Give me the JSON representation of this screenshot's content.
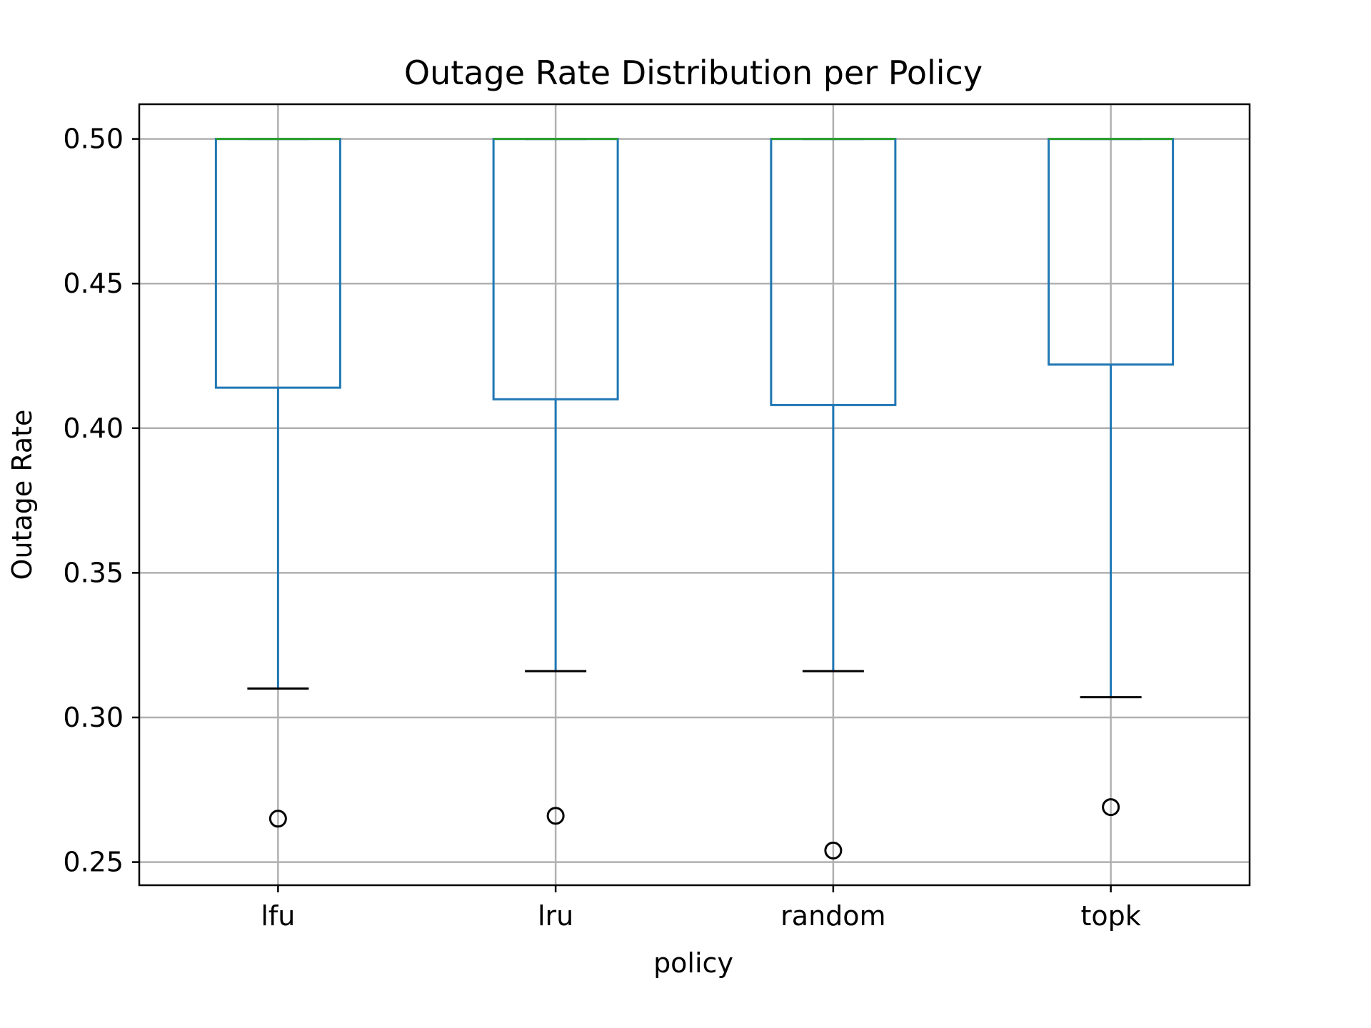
{
  "chart_data": {
    "type": "box",
    "title": "Outage Rate Distribution per Policy",
    "xlabel": "policy",
    "ylabel": "Outage Rate",
    "ylim": [
      0.242,
      0.512
    ],
    "yticks": [
      0.25,
      0.3,
      0.35,
      0.4,
      0.45,
      0.5
    ],
    "ytick_labels": [
      "0.25",
      "0.30",
      "0.35",
      "0.40",
      "0.45",
      "0.50"
    ],
    "grid": true,
    "categories": [
      "lfu",
      "lru",
      "random",
      "topk"
    ],
    "boxes": [
      {
        "name": "lfu",
        "whisker_low": 0.31,
        "q1": 0.414,
        "median": 0.5,
        "q3": 0.5,
        "whisker_high": 0.5,
        "outliers": [
          0.265
        ]
      },
      {
        "name": "lru",
        "whisker_low": 0.316,
        "q1": 0.41,
        "median": 0.5,
        "q3": 0.5,
        "whisker_high": 0.5,
        "outliers": [
          0.266
        ]
      },
      {
        "name": "random",
        "whisker_low": 0.316,
        "q1": 0.408,
        "median": 0.5,
        "q3": 0.5,
        "whisker_high": 0.5,
        "outliers": [
          0.254
        ]
      },
      {
        "name": "topk",
        "whisker_low": 0.307,
        "q1": 0.422,
        "median": 0.5,
        "q3": 0.5,
        "whisker_high": 0.5,
        "outliers": [
          0.269
        ]
      }
    ],
    "colors": {
      "box": "#1f77b4",
      "median": "#2ca02c",
      "cap": "#000000",
      "outlier": "#000000",
      "grid": "#b0b0b0"
    }
  }
}
